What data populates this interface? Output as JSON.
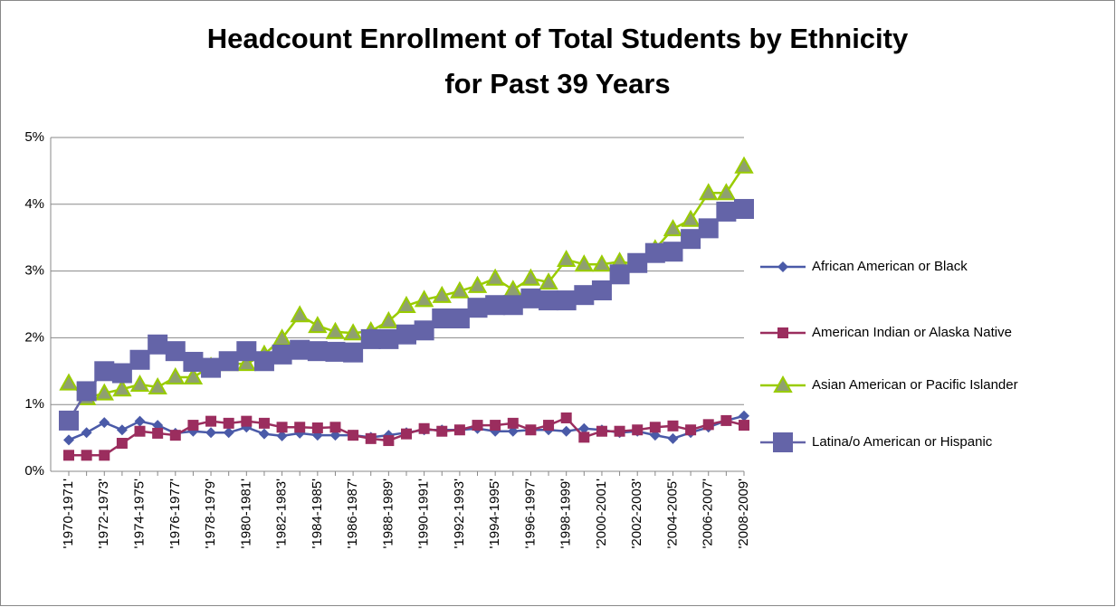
{
  "chart_data": {
    "type": "line",
    "title": [
      "Headcount Enrollment of Total Students by Ethnicity",
      "for Past 39 Years"
    ],
    "categories": [
      "'1970-1971'",
      null,
      "'1972-1973'",
      null,
      "'1974-1975'",
      null,
      "'1976-1977'",
      null,
      "'1978-1979'",
      null,
      "'1980-1981'",
      null,
      "'1982-1983'",
      null,
      "'1984-1985'",
      null,
      "'1986-1987'",
      null,
      "'1988-1989'",
      null,
      "'1990-1991'",
      null,
      "'1992-1993'",
      null,
      "'1994-1995'",
      null,
      "'1996-1997'",
      null,
      "'1998-1999'",
      null,
      "'2000-2001'",
      null,
      "'2002-2003'",
      null,
      "'2004-2005'",
      null,
      "'2006-2007'",
      null,
      "'2008-2009'"
    ],
    "series": [
      {
        "name": "African American or Black",
        "color": "#4a5aa8",
        "marker": "diamond",
        "values": [
          0.47,
          0.58,
          0.73,
          0.62,
          0.75,
          0.69,
          0.57,
          0.6,
          0.58,
          0.58,
          0.66,
          0.56,
          0.53,
          0.57,
          0.54,
          0.54,
          0.54,
          0.51,
          0.54,
          0.58,
          0.62,
          0.62,
          0.62,
          0.64,
          0.6,
          0.6,
          0.62,
          0.62,
          0.6,
          0.64,
          0.62,
          0.58,
          0.6,
          0.54,
          0.49,
          0.58,
          0.66,
          0.76,
          0.83
        ]
      },
      {
        "name": "American Indian or Alaska Native",
        "color": "#9b2d5e",
        "marker": "square",
        "values": [
          0.24,
          0.24,
          0.24,
          0.42,
          0.6,
          0.57,
          0.54,
          0.69,
          0.75,
          0.72,
          0.75,
          0.72,
          0.66,
          0.66,
          0.65,
          0.66,
          0.54,
          0.49,
          0.46,
          0.56,
          0.64,
          0.6,
          0.62,
          0.69,
          0.69,
          0.72,
          0.62,
          0.69,
          0.8,
          0.51,
          0.6,
          0.6,
          0.62,
          0.66,
          0.68,
          0.62,
          0.7,
          0.76,
          0.69
        ]
      },
      {
        "name": "Asian American or Pacific Islander",
        "color": "#99cc00",
        "marker": "triangle",
        "values": [
          1.32,
          1.1,
          1.17,
          1.23,
          1.3,
          1.26,
          1.41,
          1.41,
          1.57,
          1.61,
          1.61,
          1.75,
          1.99,
          2.34,
          2.18,
          2.09,
          2.07,
          2.1,
          2.25,
          2.48,
          2.57,
          2.63,
          2.7,
          2.78,
          2.89,
          2.72,
          2.89,
          2.83,
          3.17,
          3.1,
          3.1,
          3.14,
          3.1,
          3.33,
          3.63,
          3.77,
          4.17,
          4.17,
          4.57
        ]
      },
      {
        "name": "Latina/o American or Hispanic",
        "color": "#6464a8",
        "marker": "bigsquare",
        "values": [
          0.76,
          1.2,
          1.5,
          1.47,
          1.67,
          1.9,
          1.8,
          1.64,
          1.55,
          1.65,
          1.8,
          1.65,
          1.75,
          1.82,
          1.8,
          1.79,
          1.78,
          1.98,
          1.98,
          2.05,
          2.11,
          2.29,
          2.29,
          2.45,
          2.49,
          2.49,
          2.59,
          2.56,
          2.56,
          2.64,
          2.71,
          2.95,
          3.12,
          3.27,
          3.29,
          3.48,
          3.64,
          3.89,
          3.93
        ]
      }
    ],
    "ylim": [
      0,
      5
    ],
    "yticks": [
      {
        "value": 0,
        "label": "0%"
      },
      {
        "value": 1,
        "label": "1%"
      },
      {
        "value": 2,
        "label": "2%"
      },
      {
        "value": 3,
        "label": "3%"
      },
      {
        "value": 4,
        "label": "4%"
      },
      {
        "value": 5,
        "label": "5%"
      }
    ],
    "grid": true,
    "legend": "right"
  }
}
